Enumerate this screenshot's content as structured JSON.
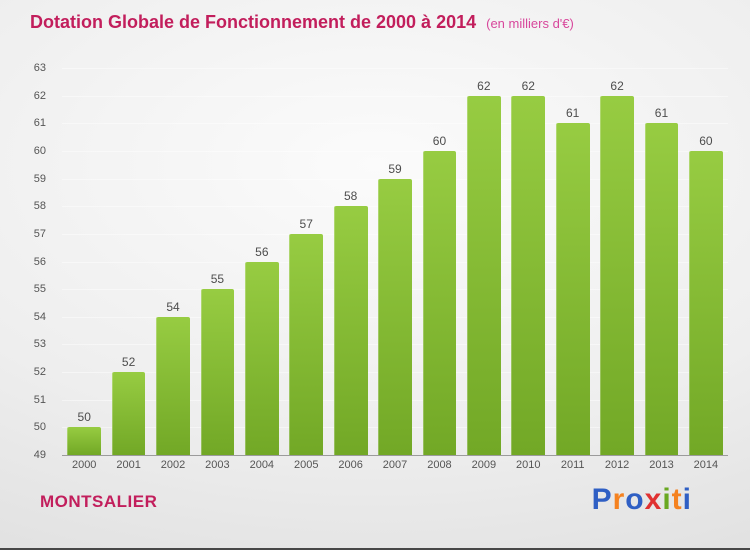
{
  "header": {},
  "chart_data": {
    "type": "bar",
    "title": "Dotation Globale de Fonctionnement de 2000 à 2014",
    "subtitle": "(en milliers d'€)",
    "categories": [
      "2000",
      "2001",
      "2002",
      "2003",
      "2004",
      "2005",
      "2006",
      "2007",
      "2008",
      "2009",
      "2010",
      "2011",
      "2012",
      "2013",
      "2014"
    ],
    "values": [
      50,
      52,
      54,
      55,
      56,
      57,
      58,
      59,
      60,
      62,
      62,
      61,
      62,
      61,
      60
    ],
    "xlabel": "",
    "ylabel": "",
    "ylim": [
      49,
      63
    ],
    "ytick_step": 1,
    "bar_color": "#7fb62e",
    "grid": "faint-horizontal",
    "legend": "none",
    "value_labels": true
  },
  "footer": {
    "commune_label": "MONTSALIER",
    "logo_letters": [
      {
        "ch": "P",
        "color": "#2f5fc4"
      },
      {
        "ch": "r",
        "color": "#f58220"
      },
      {
        "ch": "o",
        "color": "#2f5fc4"
      },
      {
        "ch": "x",
        "color": "#e03131"
      },
      {
        "ch": "i",
        "color": "#69a821"
      },
      {
        "ch": "t",
        "color": "#f58220"
      },
      {
        "ch": "i",
        "color": "#2f5fc4"
      }
    ]
  }
}
